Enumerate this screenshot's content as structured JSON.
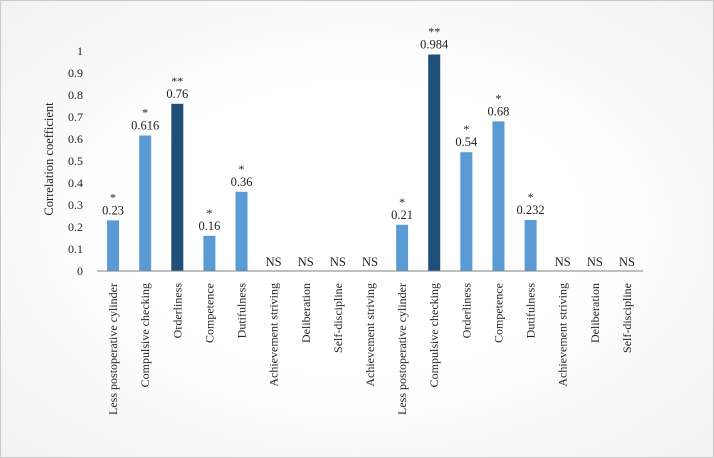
{
  "chart_data": {
    "type": "bar",
    "ylabel": "Correlation coefficient",
    "ylim": [
      0,
      1
    ],
    "yticks": [
      "0",
      "0.1",
      "0.2",
      "0.3",
      "0.4",
      "0.5",
      "0.6",
      "0.7",
      "0.8",
      "0.9",
      "1"
    ],
    "grid": false,
    "colors": {
      "default": "#5b9bd5",
      "highlight": "#1f4e79",
      "axis": "#7f7f7f"
    },
    "categories": [
      "Less postoperative cylinder",
      "Compulsive checking",
      "Orderliness",
      "Competence",
      "Dutifulness",
      "Achievement striving",
      "Deliberation",
      "Self-discipline",
      "Achievement striving",
      "Less postoperative cylinder",
      "Compulsive checking",
      "Orderliness",
      "Competence",
      "Dutifulness",
      "Achievement striving",
      "Deliberation",
      "Self-discipline"
    ],
    "values": [
      0.23,
      0.616,
      0.76,
      0.16,
      0.36,
      null,
      null,
      null,
      null,
      0.21,
      0.984,
      0.54,
      0.68,
      0.232,
      null,
      null,
      null
    ],
    "labels": [
      "0.23",
      "0.616",
      "0.76",
      "0.16",
      "0.36",
      "NS",
      "NS",
      "NS",
      "NS",
      "0.21",
      "0.984",
      "0.54",
      "0.68",
      "0.232",
      "NS",
      "NS",
      "NS"
    ],
    "significance": [
      "*",
      "*",
      "**",
      "*",
      "*",
      "",
      "",
      "",
      "",
      "*",
      "**",
      "*",
      "*",
      "*",
      "",
      "",
      ""
    ],
    "highlight": [
      false,
      false,
      true,
      false,
      false,
      false,
      false,
      false,
      false,
      false,
      true,
      false,
      false,
      false,
      false,
      false,
      false
    ]
  }
}
